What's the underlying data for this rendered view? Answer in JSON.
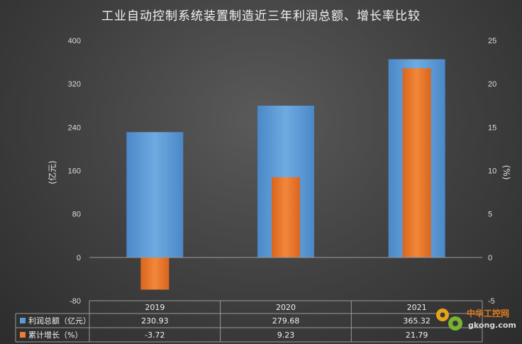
{
  "chart_data": {
    "type": "bar",
    "title": "工业自动控制系统装置制造近三年利润总额、增长率比较",
    "categories": [
      "2019",
      "2020",
      "2021"
    ],
    "series": [
      {
        "name": "利润总额（亿元）",
        "values": [
          230.93,
          279.68,
          365.32
        ],
        "axis": "left",
        "color": "#5b9bd5",
        "display": [
          "230.93",
          "279.68",
          "365.32"
        ]
      },
      {
        "name": "累计增长（%）",
        "values": [
          -3.72,
          9.23,
          21.79
        ],
        "axis": "right",
        "color": "#ed7d31",
        "display": [
          "-3.72",
          "9.23",
          "21.79"
        ]
      }
    ],
    "ylabel": "(亿元)",
    "y2label": "(%)",
    "ylim": [
      -80,
      400
    ],
    "y2lim": [
      -5,
      25
    ],
    "yticks": [
      "400",
      "320",
      "240",
      "160",
      "80",
      "0",
      "-80"
    ],
    "y2ticks": [
      "25",
      "20",
      "15",
      "10",
      "5",
      "0",
      "-5"
    ],
    "grid": false,
    "legend": "data-table"
  },
  "watermark": {
    "brand": "中华工控网",
    "url": "gkong.com"
  }
}
